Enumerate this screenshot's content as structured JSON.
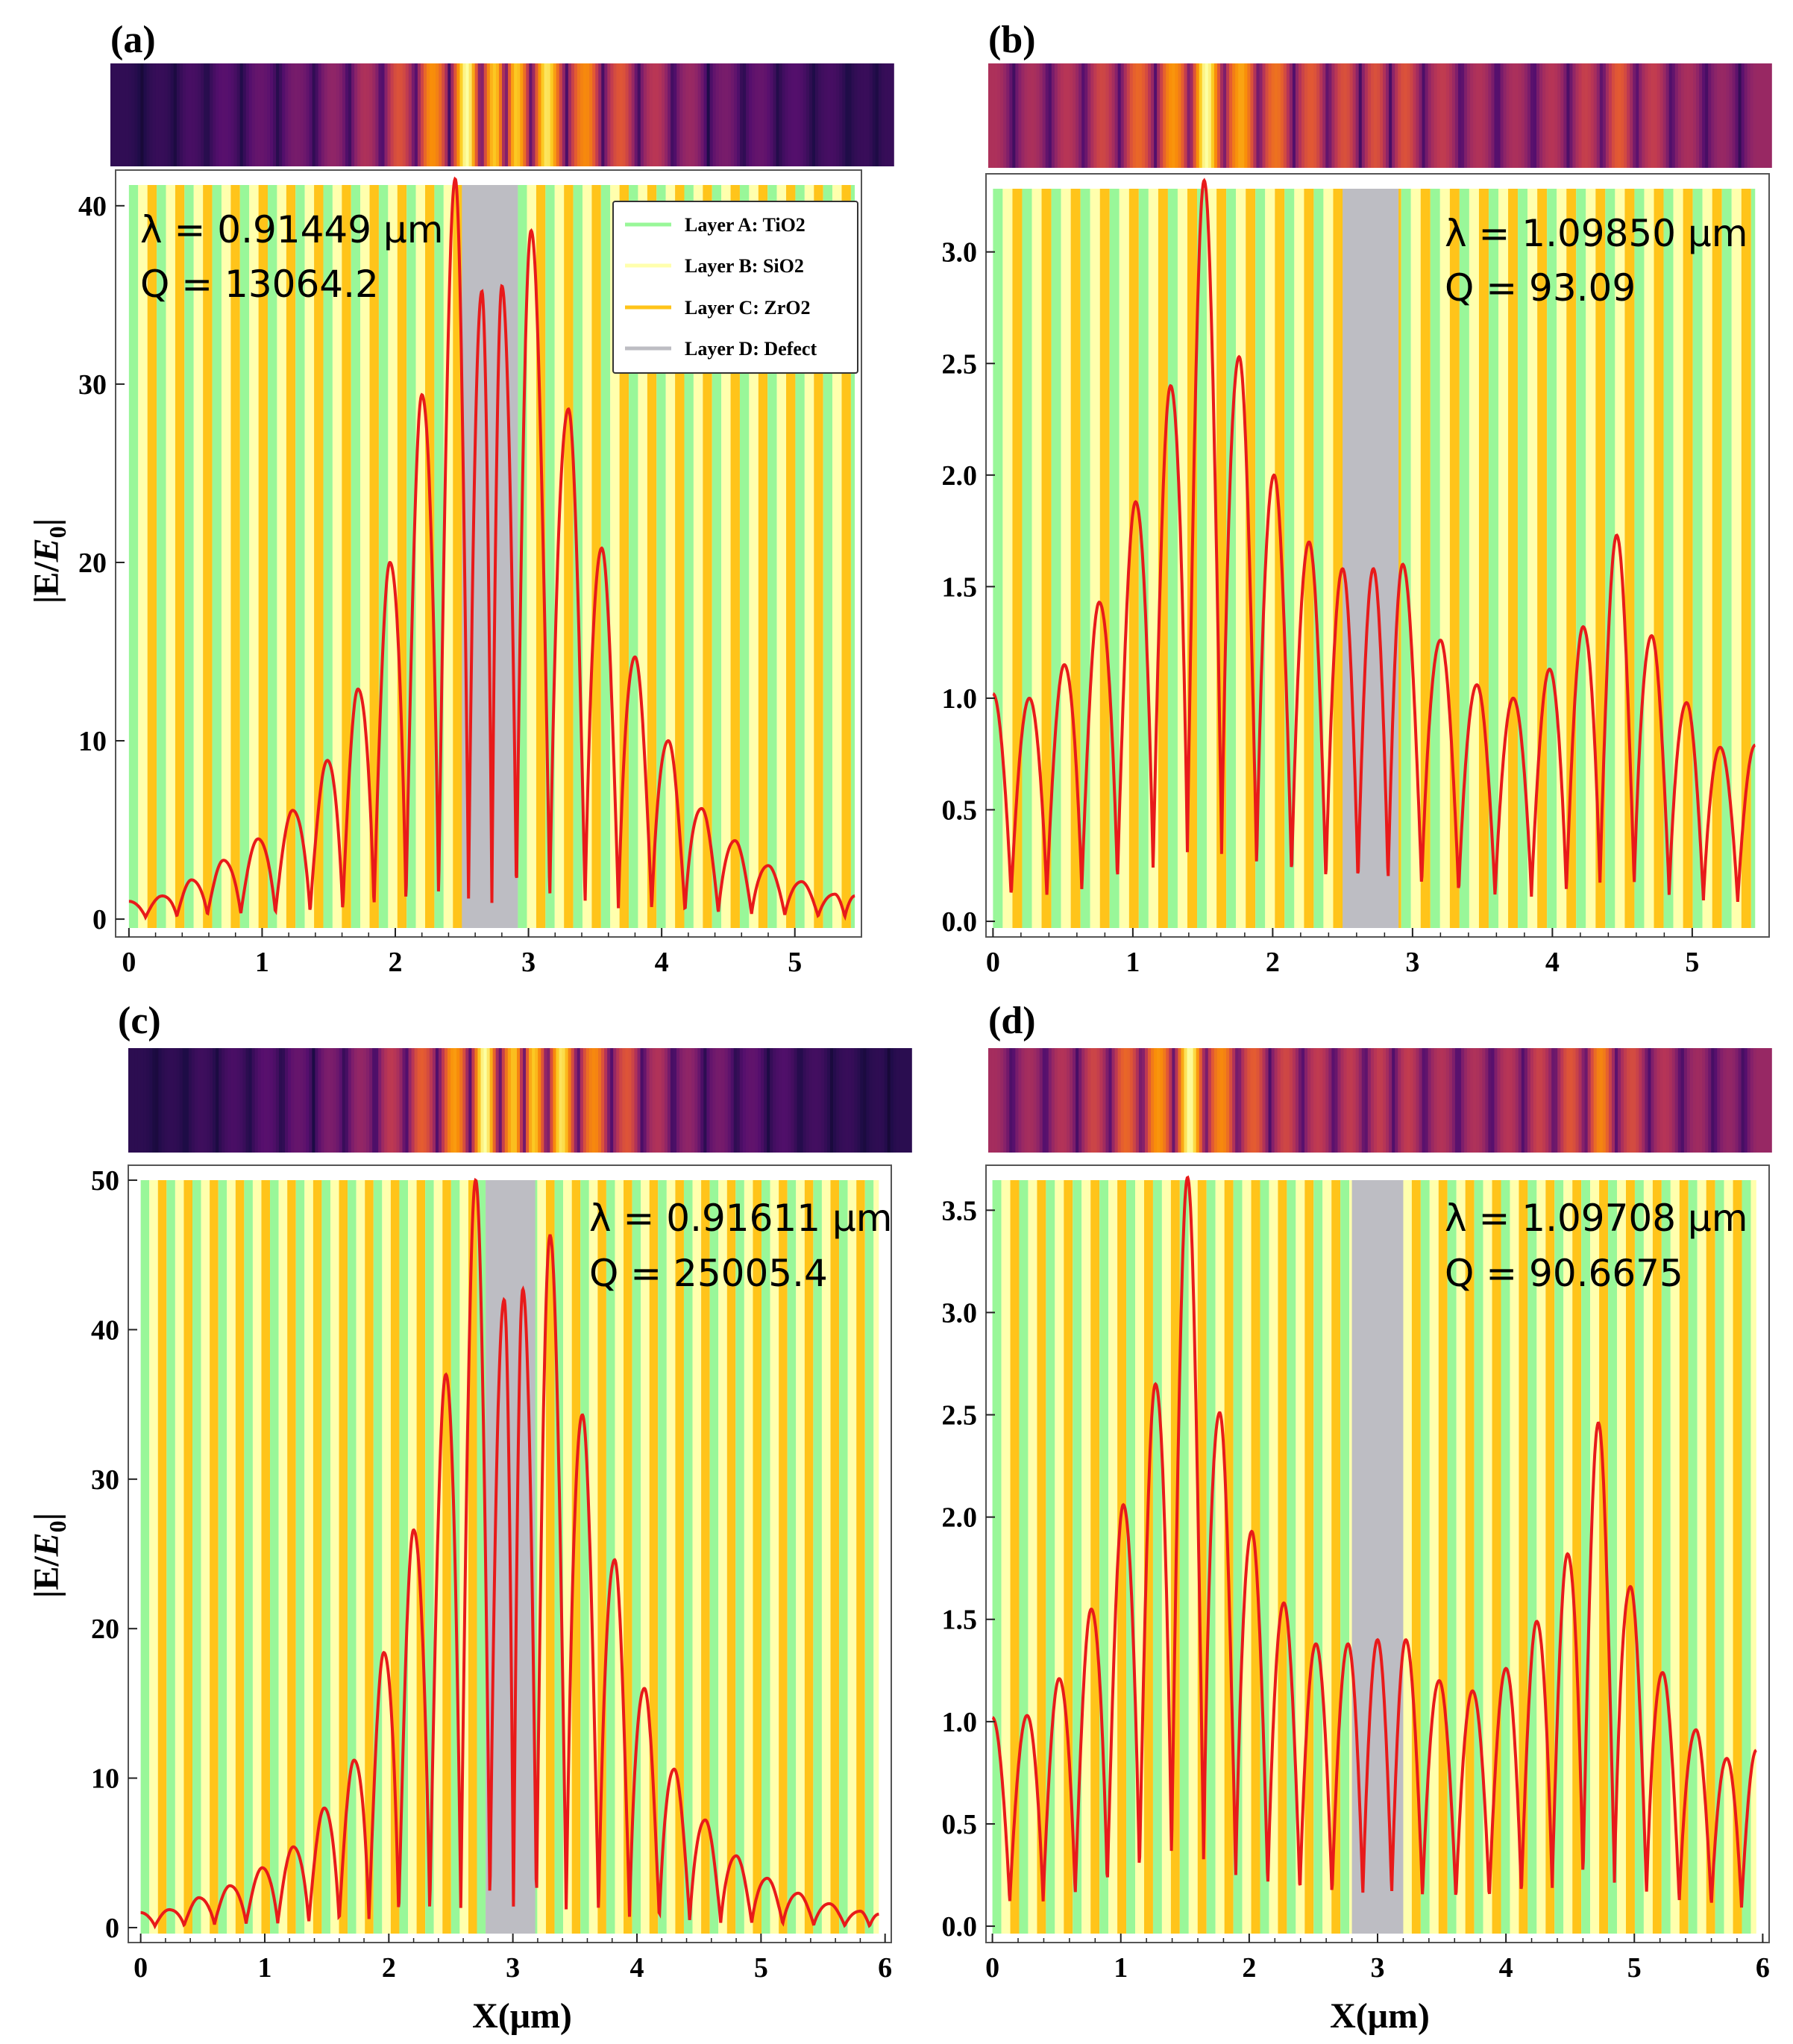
{
  "layers": {
    "A": {
      "name": "Layer A: TiO2",
      "color": "#99f799"
    },
    "B": {
      "name": "Layer B: SiO2",
      "color": "#ffffad"
    },
    "C": {
      "name": "Layer C: ZrO2",
      "color": "#ffc41a"
    },
    "D": {
      "name": "Layer D: Defect",
      "color": "#bdbdc3"
    }
  },
  "curve_color": "#e81a1a",
  "legend_title_order": [
    "A",
    "B",
    "C",
    "D"
  ],
  "chart_data": [
    {
      "type": "line",
      "panel": "(a)",
      "ylabel": "|E/E0|",
      "xlabel": "",
      "xlim": [
        -0.1,
        5.5
      ],
      "ylim": [
        -1,
        42
      ],
      "xticks": [
        0,
        1,
        2,
        3,
        4,
        5
      ],
      "yticks": [
        0,
        10,
        20,
        30,
        40
      ],
      "ytick_format": 0,
      "annotation": [
        "λ = 0.91449 μm",
        "Q = 13064.2"
      ],
      "show_legend": true,
      "stack_extent": [
        0,
        5.45
      ],
      "defect": [
        2.5,
        2.92
      ],
      "layer_pattern": [
        "A",
        "B",
        "C"
      ],
      "layer_thickness": 0.0695,
      "peaks_x": [
        0,
        0.25,
        0.47,
        0.71,
        0.97,
        1.23,
        1.49,
        1.72,
        1.96,
        2.2,
        2.45,
        2.65,
        2.8,
        3.02,
        3.3,
        3.55,
        3.8,
        4.05,
        4.3,
        4.55,
        4.8,
        5.05,
        5.3,
        5.45
      ],
      "peaks_y": [
        1,
        1.3,
        2.2,
        3.3,
        4.5,
        6.1,
        8.9,
        12.9,
        20.0,
        29.4,
        41.5,
        35.2,
        35.5,
        38.6,
        28.6,
        20.8,
        14.7,
        10.0,
        6.2,
        4.4,
        3.0,
        2.1,
        1.4,
        1.3
      ],
      "min_depth": 0.2,
      "colorbar_seed": 1
    },
    {
      "type": "line",
      "panel": "(b)",
      "ylabel": "",
      "xlabel": "",
      "xlim": [
        -0.05,
        5.55
      ],
      "ylim": [
        -0.07,
        3.35
      ],
      "xticks": [
        0,
        1,
        2,
        3,
        4,
        5
      ],
      "yticks": [
        0.0,
        0.5,
        1.0,
        1.5,
        2.0,
        2.5,
        3.0
      ],
      "ytick_format": 1,
      "annotation": [
        "λ = 1.09850 μm",
        "Q = 93.09"
      ],
      "show_legend": false,
      "stack_extent": [
        0,
        5.45
      ],
      "defect": [
        2.5,
        2.9
      ],
      "layer_pattern": [
        "A",
        "B",
        "C"
      ],
      "layer_thickness": 0.0695,
      "peaks_x": [
        0,
        0.26,
        0.51,
        0.76,
        1.02,
        1.27,
        1.51,
        1.76,
        2.01,
        2.26,
        2.5,
        2.72,
        2.93,
        3.2,
        3.46,
        3.72,
        3.98,
        4.22,
        4.46,
        4.71,
        4.96,
        5.2,
        5.45
      ],
      "peaks_y": [
        1.02,
        1.0,
        1.15,
        1.43,
        1.88,
        2.4,
        3.32,
        2.53,
        2.0,
        1.7,
        1.58,
        1.58,
        1.6,
        1.26,
        1.06,
        1.0,
        1.13,
        1.32,
        1.73,
        1.28,
        0.98,
        0.78,
        0.79
      ],
      "min_depth": 0.25,
      "colorbar_seed": 2
    },
    {
      "type": "line",
      "panel": "(c)",
      "ylabel": "|E/E0|",
      "xlabel": "X(μm)",
      "xlim": [
        -0.1,
        6.05
      ],
      "ylim": [
        -1,
        51
      ],
      "xticks": [
        0,
        1,
        2,
        3,
        4,
        5,
        6
      ],
      "yticks": [
        0,
        10,
        20,
        30,
        40,
        50
      ],
      "ytick_format": 0,
      "annotation": [
        "λ = 0.91611 μm",
        "Q = 25005.4"
      ],
      "show_legend": false,
      "stack_extent": [
        0,
        5.95
      ],
      "defect": [
        2.78,
        3.18
      ],
      "layer_pattern": [
        "A",
        "B",
        "C"
      ],
      "layer_thickness": 0.0695,
      "peaks_x": [
        0,
        0.23,
        0.47,
        0.72,
        0.98,
        1.23,
        1.48,
        1.72,
        1.96,
        2.2,
        2.46,
        2.7,
        2.93,
        3.08,
        3.3,
        3.56,
        3.82,
        4.06,
        4.3,
        4.55,
        4.8,
        5.05,
        5.3,
        5.55,
        5.8,
        5.95
      ],
      "peaks_y": [
        1,
        1.2,
        2.0,
        2.8,
        4.0,
        5.4,
        8.0,
        11.2,
        18.4,
        26.6,
        37.0,
        50.0,
        42.0,
        42.7,
        46.3,
        34.3,
        24.6,
        16.0,
        10.6,
        7.2,
        4.8,
        3.3,
        2.3,
        1.6,
        1.1,
        0.9
      ],
      "min_depth": 0.2,
      "colorbar_seed": 3
    },
    {
      "type": "line",
      "panel": "(d)",
      "ylabel": "",
      "xlabel": "X(μm)",
      "xlim": [
        -0.05,
        6.05
      ],
      "ylim": [
        -0.08,
        3.72
      ],
      "xticks": [
        0,
        1,
        2,
        3,
        4,
        5,
        6
      ],
      "yticks": [
        0.0,
        0.5,
        1.0,
        1.5,
        2.0,
        2.5,
        3.0,
        3.5
      ],
      "ytick_format": 1,
      "annotation": [
        "λ = 1.09708 μm",
        "Q = 90.6675"
      ],
      "show_legend": false,
      "stack_extent": [
        0,
        5.95
      ],
      "defect": [
        2.8,
        3.2
      ],
      "layer_pattern": [
        "A",
        "B",
        "C"
      ],
      "layer_thickness": 0.0695,
      "peaks_x": [
        0,
        0.27,
        0.52,
        0.77,
        1.02,
        1.27,
        1.52,
        1.77,
        2.02,
        2.27,
        2.52,
        2.77,
        3.0,
        3.22,
        3.48,
        3.74,
        4.0,
        4.24,
        4.48,
        4.72,
        4.97,
        5.22,
        5.48,
        5.72,
        5.95
      ],
      "peaks_y": [
        1.02,
        1.03,
        1.21,
        1.55,
        2.06,
        2.65,
        3.66,
        2.51,
        1.93,
        1.58,
        1.38,
        1.38,
        1.4,
        1.4,
        1.2,
        1.15,
        1.26,
        1.49,
        1.82,
        2.46,
        1.66,
        1.24,
        0.96,
        0.82,
        0.86
      ],
      "min_depth": 0.25,
      "colorbar_seed": 4
    }
  ]
}
